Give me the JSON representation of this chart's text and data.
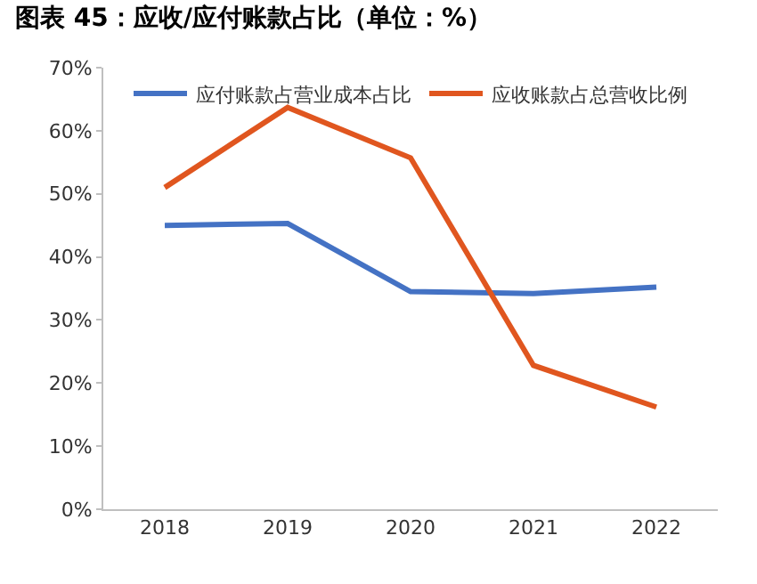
{
  "chart_data": {
    "type": "line",
    "title": "图表 45：应收/应付账款占比（单位：%）",
    "categories": [
      "2018",
      "2019",
      "2020",
      "2021",
      "2022"
    ],
    "series": [
      {
        "name": "应付账款占营业成本占比",
        "color": "#4472c4",
        "values": [
          45.0,
          45.3,
          34.5,
          34.2,
          35.2
        ]
      },
      {
        "name": "应收账款占总营收比例",
        "color": "#e0561f",
        "values": [
          51.0,
          63.7,
          55.7,
          22.8,
          16.2
        ]
      }
    ],
    "ylim": [
      0,
      70
    ],
    "yticks": [
      {
        "value": 0,
        "label": "0%"
      },
      {
        "value": 10,
        "label": "10%"
      },
      {
        "value": 20,
        "label": "20%"
      },
      {
        "value": 30,
        "label": "30%"
      },
      {
        "value": 40,
        "label": "40%"
      },
      {
        "value": 50,
        "label": "50%"
      },
      {
        "value": 60,
        "label": "60%"
      },
      {
        "value": 70,
        "label": "70%"
      }
    ],
    "grid": false,
    "legend": "top",
    "marker": "none",
    "line_style": "solid"
  }
}
